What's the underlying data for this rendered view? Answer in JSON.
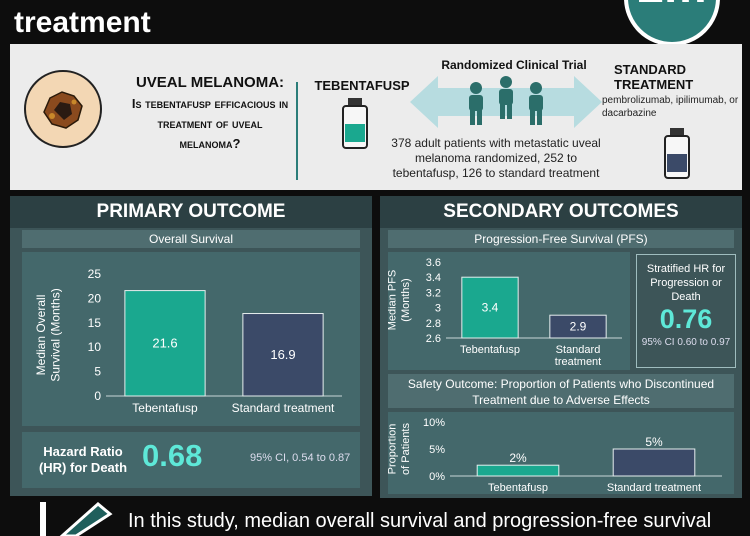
{
  "title": {
    "line1": "",
    "line2": "treatment"
  },
  "logo": {
    "text": "2m"
  },
  "question": {
    "heading": "UVEAL MELANOMA:",
    "body": "Is tebentafusp efficacious in treatment of uveal melanoma?"
  },
  "trial": {
    "arm1": "TEBENTAFUSP",
    "design": "Randomized Clinical Trial",
    "arm2": "STANDARD TREATMENT",
    "arm2_drugs": "pembrolizumab, ipilimumab, or dacarbazine",
    "population": "378 adult patients with metastatic uveal melanoma randomized, 252 to tebentafusp, 126 to standard treatment"
  },
  "primary": {
    "header": "PRIMARY OUTCOME",
    "subheader": "Overall Survival",
    "hr_label": "Hazard Ratio (HR) for Death",
    "hr_value": "0.68",
    "hr_ci": "95% CI, 0.54 to 0.87"
  },
  "secondary": {
    "header": "SECONDARY OUTCOMES",
    "pfs_subheader": "Progression-Free Survival (PFS)",
    "hr_label": "Stratified HR for Progression or Death",
    "hr_value": "0.76",
    "hr_ci": "95% CI 0.60 to 0.97",
    "safety_subheader": "Safety Outcome: Proportion of Patients who Discontinued Treatment due to Adverse Effects"
  },
  "conclusion": {
    "text": "In this study, median overall survival and progression-free survival"
  },
  "colors": {
    "tebentafusp": "#1aa88f",
    "standard": "#3b4a68",
    "accent": "#5ee8d8"
  },
  "chart_data": [
    {
      "type": "bar",
      "categories": [
        "Tebentafusp",
        "Standard treatment"
      ],
      "values": [
        21.6,
        16.9
      ],
      "value_labels": [
        "21.6",
        "16.9"
      ],
      "ylabel": "Median Overall Survival (Months)",
      "ylim": [
        0,
        25
      ],
      "yticks": [
        "0",
        "5",
        "10",
        "15",
        "20",
        "25"
      ]
    },
    {
      "type": "bar",
      "categories": [
        "Tebentafusp",
        "Standard treatment"
      ],
      "values": [
        3.4,
        2.9
      ],
      "value_labels": [
        "3.4",
        "2.9"
      ],
      "ylabel": "Median PFS (Months)",
      "ylim": [
        2.6,
        3.6
      ],
      "yticks": [
        "2.6",
        "2.8",
        "3",
        "3.2",
        "3.4",
        "3.6"
      ]
    },
    {
      "type": "bar",
      "categories": [
        "Tebentafusp",
        "Standard treatment"
      ],
      "values": [
        2,
        5
      ],
      "value_labels": [
        "2%",
        "5%"
      ],
      "ylabel": "Proportion of Patients",
      "ylim": [
        0,
        10
      ],
      "yticks": [
        "0%",
        "5%",
        "10%"
      ]
    }
  ]
}
